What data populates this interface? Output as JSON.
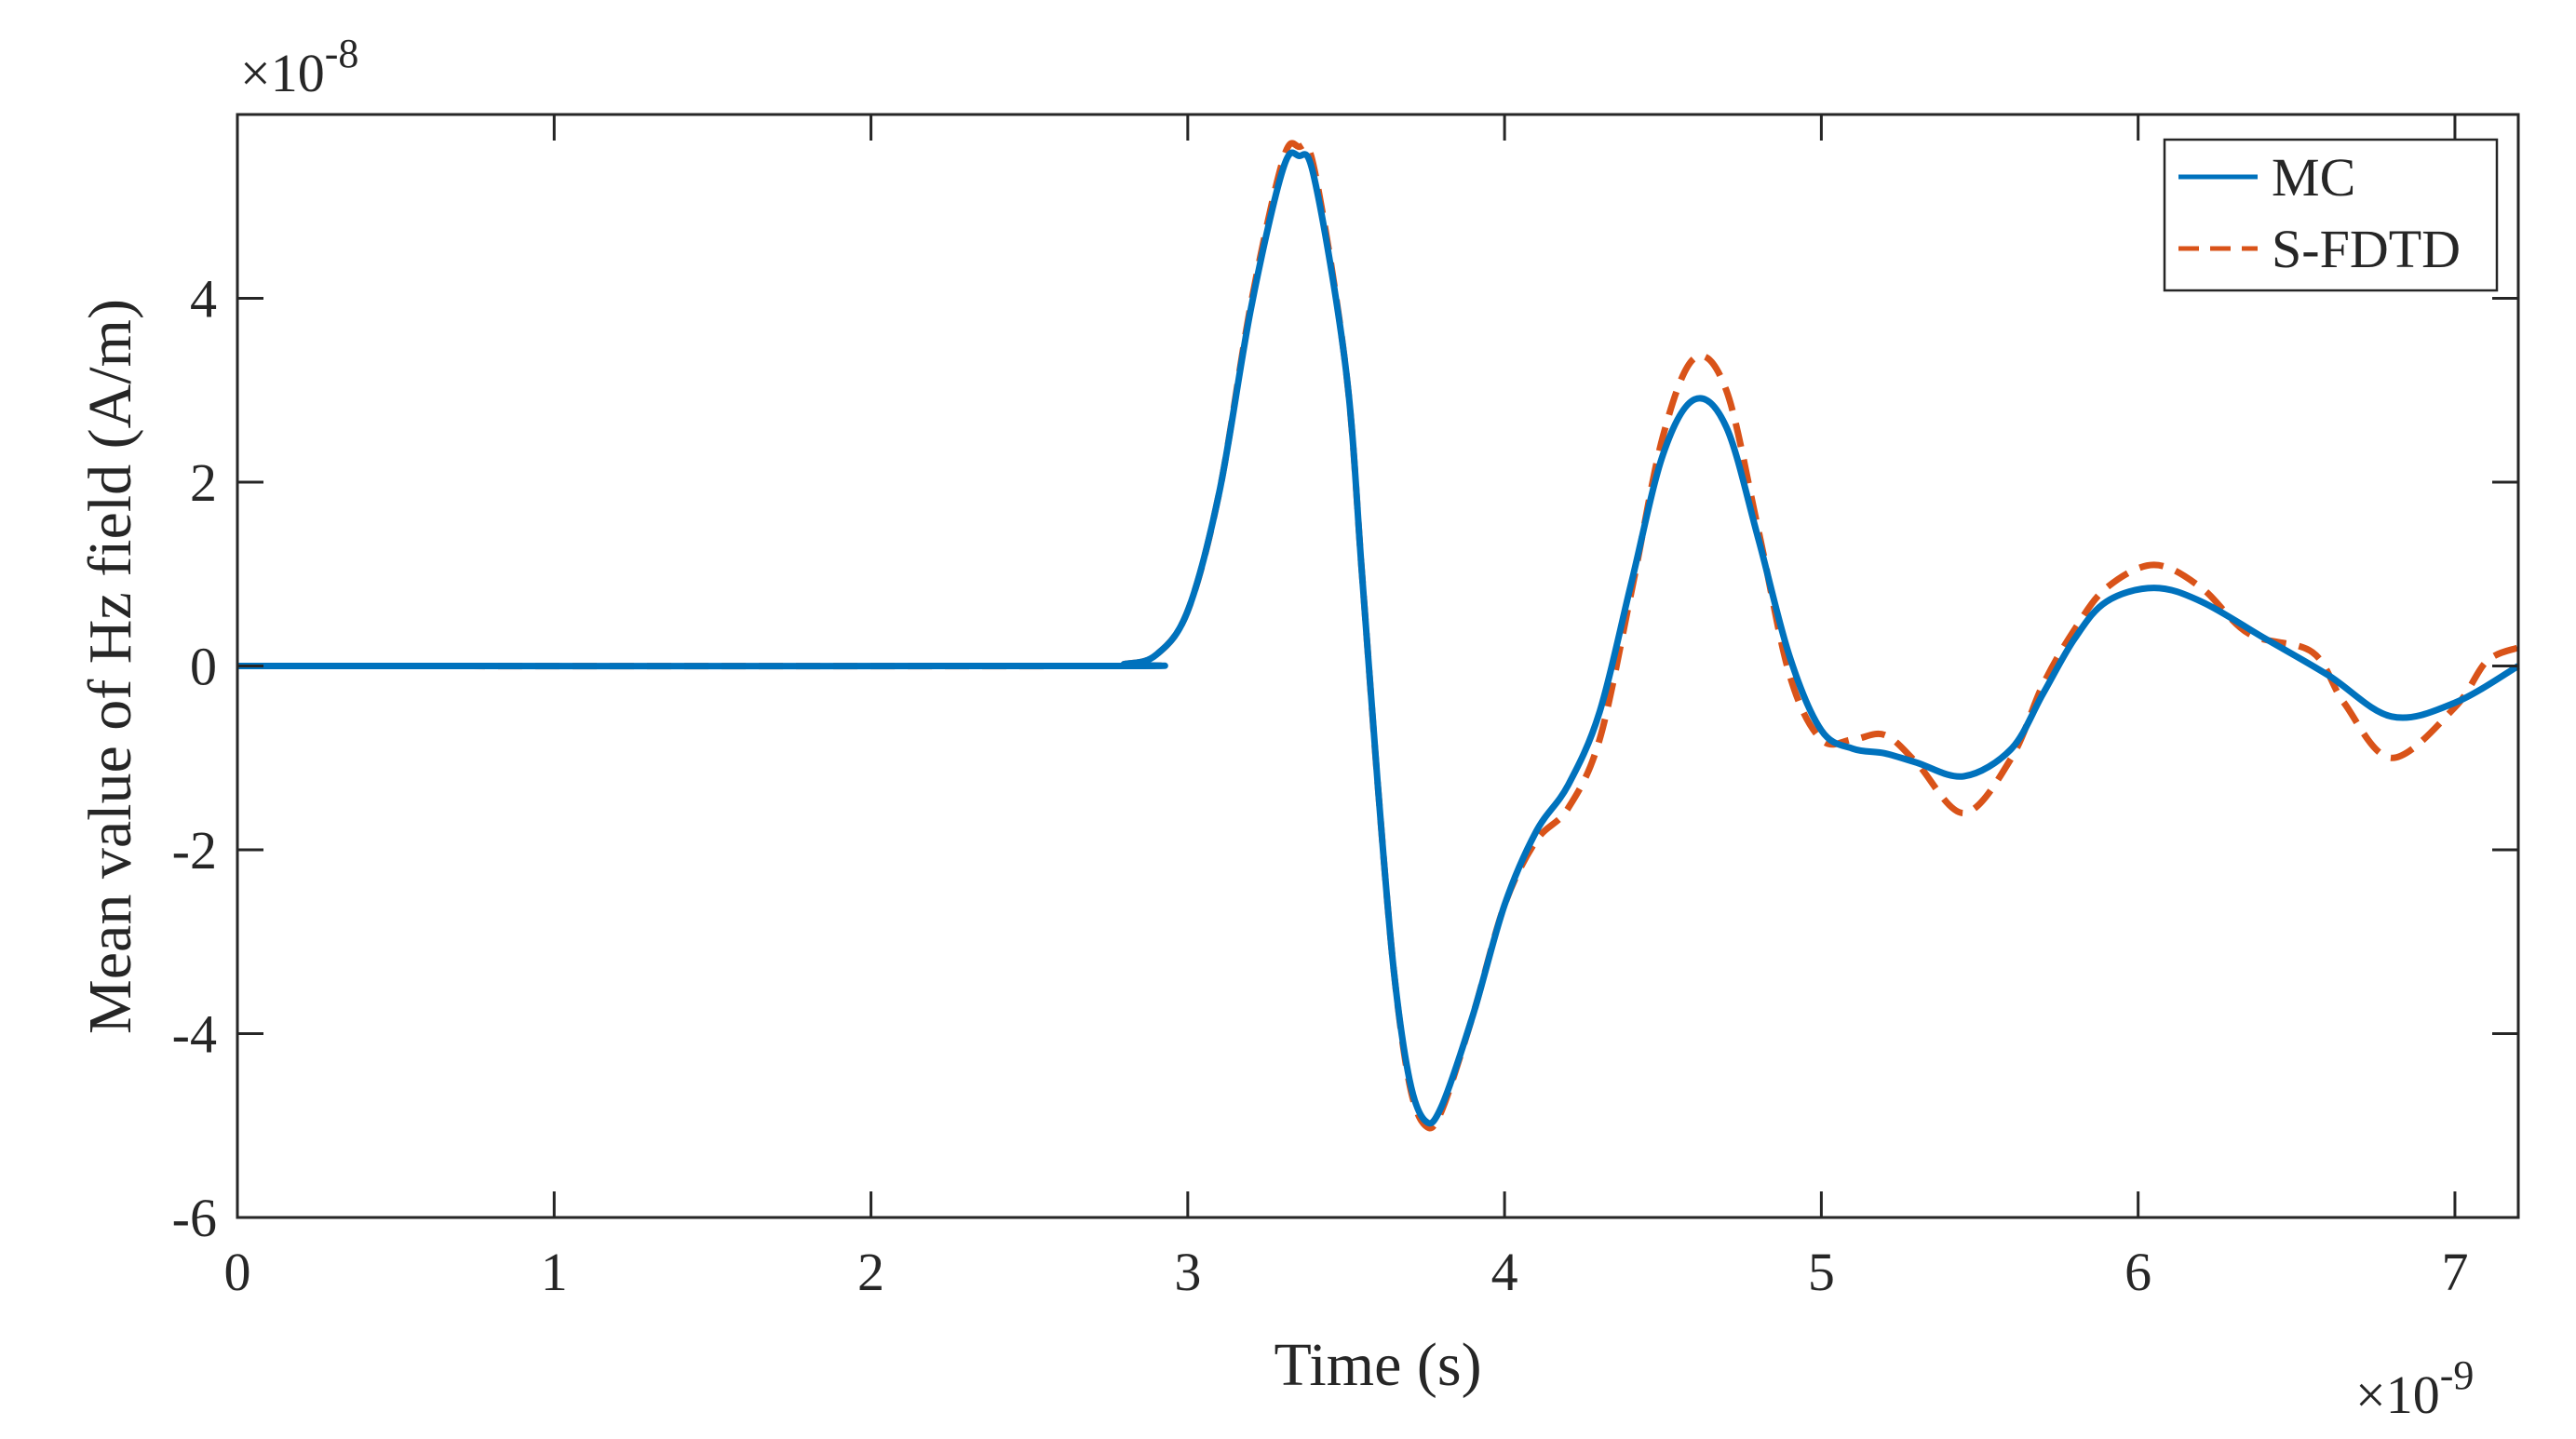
{
  "chart_data": {
    "type": "line",
    "title": "",
    "xlabel": "Time (s)",
    "ylabel": "Mean value of Hz field (A/m)",
    "x_multiplier_label": "×10",
    "x_multiplier_exp": "-9",
    "y_multiplier_label": "×10",
    "y_multiplier_exp": "-8",
    "xlim": [
      0,
      7.2
    ],
    "ylim": [
      -6,
      6
    ],
    "xticks": [
      "0",
      "1",
      "2",
      "3",
      "4",
      "5",
      "6",
      "7"
    ],
    "yticks": [
      "-6",
      "-4",
      "-2",
      "0",
      "2",
      "4"
    ],
    "grid": false,
    "legend_position": "top-right",
    "series": [
      {
        "name": "MC",
        "color": "#0072BD",
        "style": "solid",
        "points": [
          [
            0,
            0
          ],
          [
            2.7,
            0
          ],
          [
            2.8,
            0.02
          ],
          [
            2.9,
            0.12
          ],
          [
            3.0,
            0.6
          ],
          [
            3.1,
            1.9
          ],
          [
            3.2,
            3.9
          ],
          [
            3.3,
            5.4
          ],
          [
            3.35,
            5.55
          ],
          [
            3.4,
            5.3
          ],
          [
            3.5,
            3.2
          ],
          [
            3.55,
            1.0
          ],
          [
            3.6,
            -1.3
          ],
          [
            3.65,
            -3.3
          ],
          [
            3.7,
            -4.5
          ],
          [
            3.75,
            -4.95
          ],
          [
            3.8,
            -4.8
          ],
          [
            3.9,
            -3.8
          ],
          [
            4.0,
            -2.6
          ],
          [
            4.1,
            -1.8
          ],
          [
            4.2,
            -1.3
          ],
          [
            4.3,
            -0.5
          ],
          [
            4.4,
            0.9
          ],
          [
            4.5,
            2.3
          ],
          [
            4.6,
            2.9
          ],
          [
            4.7,
            2.6
          ],
          [
            4.8,
            1.4
          ],
          [
            4.9,
            0.1
          ],
          [
            5.0,
            -0.7
          ],
          [
            5.1,
            -0.9
          ],
          [
            5.2,
            -0.95
          ],
          [
            5.3,
            -1.05
          ],
          [
            5.45,
            -1.2
          ],
          [
            5.6,
            -0.9
          ],
          [
            5.7,
            -0.3
          ],
          [
            5.8,
            0.3
          ],
          [
            5.9,
            0.7
          ],
          [
            6.05,
            0.85
          ],
          [
            6.2,
            0.7
          ],
          [
            6.4,
            0.3
          ],
          [
            6.6,
            -0.1
          ],
          [
            6.8,
            -0.55
          ],
          [
            7.0,
            -0.4
          ],
          [
            7.2,
            0.0
          ]
        ]
      },
      {
        "name": "S-FDTD",
        "color": "#D95319",
        "style": "dashed",
        "points": [
          [
            0,
            0
          ],
          [
            2.7,
            0
          ],
          [
            2.8,
            0.02
          ],
          [
            2.9,
            0.12
          ],
          [
            3.0,
            0.6
          ],
          [
            3.1,
            1.9
          ],
          [
            3.2,
            3.95
          ],
          [
            3.3,
            5.5
          ],
          [
            3.35,
            5.65
          ],
          [
            3.4,
            5.4
          ],
          [
            3.5,
            3.2
          ],
          [
            3.55,
            1.0
          ],
          [
            3.6,
            -1.3
          ],
          [
            3.65,
            -3.3
          ],
          [
            3.7,
            -4.55
          ],
          [
            3.75,
            -5.0
          ],
          [
            3.8,
            -4.85
          ],
          [
            3.9,
            -3.8
          ],
          [
            4.0,
            -2.6
          ],
          [
            4.1,
            -1.9
          ],
          [
            4.2,
            -1.55
          ],
          [
            4.3,
            -0.8
          ],
          [
            4.4,
            0.8
          ],
          [
            4.5,
            2.5
          ],
          [
            4.6,
            3.35
          ],
          [
            4.7,
            3.0
          ],
          [
            4.8,
            1.5
          ],
          [
            4.9,
            -0.1
          ],
          [
            5.0,
            -0.8
          ],
          [
            5.1,
            -0.8
          ],
          [
            5.2,
            -0.75
          ],
          [
            5.3,
            -1.05
          ],
          [
            5.45,
            -1.6
          ],
          [
            5.6,
            -1.0
          ],
          [
            5.7,
            -0.2
          ],
          [
            5.8,
            0.4
          ],
          [
            5.9,
            0.85
          ],
          [
            6.05,
            1.1
          ],
          [
            6.2,
            0.85
          ],
          [
            6.35,
            0.35
          ],
          [
            6.55,
            0.15
          ],
          [
            6.65,
            -0.4
          ],
          [
            6.8,
            -1.0
          ],
          [
            7.0,
            -0.45
          ],
          [
            7.1,
            0.05
          ],
          [
            7.2,
            0.2
          ]
        ]
      }
    ]
  }
}
